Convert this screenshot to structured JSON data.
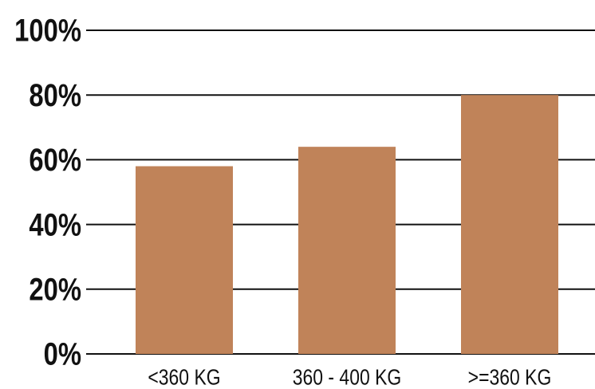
{
  "chart_data": {
    "type": "bar",
    "title": "",
    "xlabel": "",
    "ylabel": "",
    "categories": [
      "<360 KG",
      "360 - 400  KG",
      ">=360 KG"
    ],
    "values": [
      58,
      64,
      80
    ],
    "ylim": [
      0,
      100
    ],
    "yticks": [
      0,
      20,
      40,
      60,
      80,
      100
    ],
    "ytick_labels": [
      "0%",
      "20%",
      "40%",
      "60%",
      "80%",
      "100%"
    ],
    "grid": true,
    "legend": "none",
    "colors": {
      "bar": "#C08359",
      "gridline": "#111111",
      "text": "#111111"
    }
  }
}
